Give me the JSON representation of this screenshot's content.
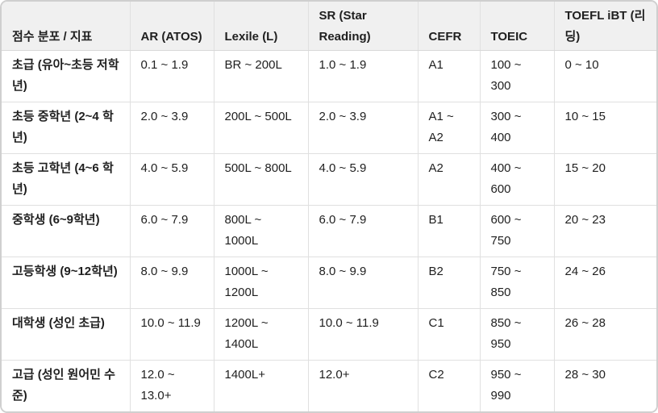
{
  "style": {
    "header_bg": "#f0f0f0",
    "grid_line_color": "#e0e0e0",
    "outer_border_color": "#cfcfcf",
    "text_color": "#1f1f1f",
    "body_bg": "#ffffff"
  },
  "chart_data": {
    "type": "table",
    "title": "",
    "columns": [
      "점수 분포 / 지표",
      "AR (ATOS)",
      "Lexile (L)",
      "SR (Star Reading)",
      "CEFR",
      "TOEIC",
      "TOEFL iBT (리딩)"
    ],
    "rows": [
      [
        "초급 (유아~초등 저학년)",
        "0.1 ~ 1.9",
        "BR ~ 200L",
        "1.0 ~ 1.9",
        "A1",
        "100 ~ 300",
        "0 ~ 10"
      ],
      [
        "초등 중학년 (2~4 학년)",
        "2.0 ~ 3.9",
        "200L ~ 500L",
        "2.0 ~ 3.9",
        "A1 ~ A2",
        "300 ~ 400",
        "10 ~ 15"
      ],
      [
        "초등 고학년 (4~6 학년)",
        "4.0 ~ 5.9",
        "500L ~ 800L",
        "4.0 ~ 5.9",
        "A2",
        "400 ~ 600",
        "15 ~ 20"
      ],
      [
        "중학생 (6~9학년)",
        "6.0 ~ 7.9",
        "800L ~ 1000L",
        "6.0 ~ 7.9",
        "B1",
        "600 ~ 750",
        "20 ~ 23"
      ],
      [
        "고등학생 (9~12학년)",
        "8.0 ~ 9.9",
        "1000L ~ 1200L",
        "8.0 ~ 9.9",
        "B2",
        "750 ~ 850",
        "24 ~ 26"
      ],
      [
        "대학생 (성인 초급)",
        "10.0 ~ 11.9",
        "1200L ~ 1400L",
        "10.0 ~ 11.9",
        "C1",
        "850 ~ 950",
        "26 ~ 28"
      ],
      [
        "고급 (성인 원어민 수준)",
        "12.0 ~ 13.0+",
        "1400L+",
        "12.0+",
        "C2",
        "950 ~ 990",
        "28 ~ 30"
      ]
    ]
  }
}
